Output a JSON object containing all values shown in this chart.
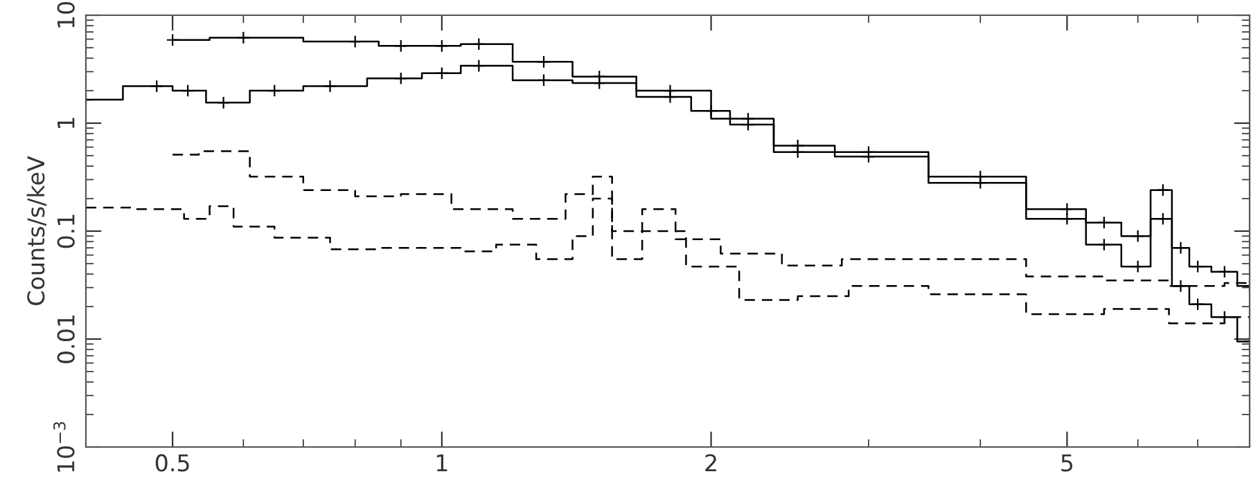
{
  "chart_data": {
    "type": "step",
    "ylabel": "Counts/s/keV",
    "log": "xy",
    "grid": false,
    "legend": false,
    "xlim": [
      0.4,
      8
    ],
    "ylim": [
      0.001,
      10
    ],
    "xticks": [
      0.5,
      1,
      2,
      5
    ],
    "yticks": [
      {
        "value": 0.001,
        "label": "10$^{−3}$"
      },
      0.01,
      0.1,
      1,
      10
    ],
    "series": [
      {
        "color": "#000000",
        "marker": "cross",
        "line_style": "solid",
        "x": [
          0.5,
          0.6,
          0.8,
          0.9,
          1.0,
          1.1,
          1.3,
          1.5,
          1.8,
          2.2,
          2.5,
          3,
          4,
          5,
          5.5,
          6,
          6.4,
          6.7,
          7,
          7.5,
          8
        ],
        "values": [
          5.9,
          6.2,
          5.7,
          5.2,
          5.2,
          5.4,
          3.7,
          2.7,
          2.0,
          1.1,
          0.62,
          0.54,
          0.32,
          0.16,
          0.12,
          0.09,
          0.24,
          0.07,
          0.047,
          0.042,
          0.031
        ]
      },
      {
        "color": "#000000",
        "marker": "cross",
        "line_style": "solid",
        "x": [
          0.4,
          0.48,
          0.52,
          0.57,
          0.65,
          0.75,
          0.9,
          1.0,
          1.1,
          1.3,
          1.5,
          1.8,
          2.0,
          2.2,
          2.5,
          3,
          4,
          5,
          5.5,
          6,
          6.4,
          6.7,
          7,
          7.5,
          8
        ],
        "values": [
          1.65,
          2.2,
          2.0,
          1.55,
          2.0,
          2.2,
          2.6,
          2.9,
          3.4,
          2.5,
          2.35,
          1.75,
          1.3,
          0.97,
          0.54,
          0.49,
          0.28,
          0.13,
          0.075,
          0.047,
          0.13,
          0.031,
          0.021,
          0.016,
          0.0095
        ]
      },
      {
        "color": "#000000",
        "marker": "none",
        "line_style": "dashed",
        "x": [
          0.5,
          0.57,
          0.65,
          0.75,
          0.85,
          0.95,
          1.1,
          1.3,
          1.45,
          1.5,
          1.6,
          1.75,
          1.9,
          2.2,
          2.6,
          3,
          4,
          5,
          6,
          7,
          8
        ],
        "values": [
          0.51,
          0.55,
          0.32,
          0.24,
          0.21,
          0.22,
          0.16,
          0.13,
          0.22,
          0.32,
          0.1,
          0.16,
          0.084,
          0.062,
          0.048,
          0.055,
          0.055,
          0.038,
          0.035,
          0.031,
          0.033
        ]
      },
      {
        "color": "#000000",
        "marker": "none",
        "line_style": "dashed",
        "x": [
          0.4,
          0.5,
          0.53,
          0.57,
          0.6,
          0.7,
          0.8,
          0.9,
          1.0,
          1.1,
          1.2,
          1.35,
          1.45,
          1.5,
          1.6,
          1.75,
          2.0,
          2.3,
          2.7,
          3,
          4,
          5,
          6,
          7,
          8
        ],
        "values": [
          0.165,
          0.16,
          0.13,
          0.17,
          0.11,
          0.087,
          0.068,
          0.07,
          0.07,
          0.065,
          0.075,
          0.055,
          0.09,
          0.2,
          0.055,
          0.1,
          0.047,
          0.023,
          0.025,
          0.031,
          0.026,
          0.017,
          0.019,
          0.014,
          0.016
        ]
      }
    ]
  }
}
